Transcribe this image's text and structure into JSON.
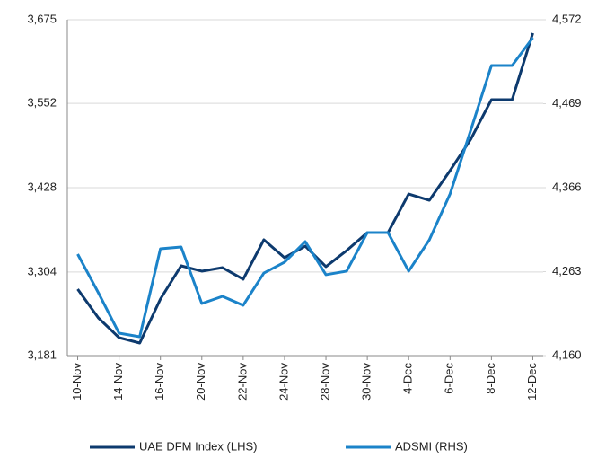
{
  "chart_data": {
    "type": "line",
    "categories": [
      "10-Nov",
      null,
      "14-Nov",
      null,
      "16-Nov",
      null,
      "20-Nov",
      null,
      "22-Nov",
      null,
      "24-Nov",
      null,
      "28-Nov",
      null,
      "30-Nov",
      null,
      "4-Dec",
      null,
      "6-Dec",
      null,
      "8-Dec",
      null,
      "12-Dec"
    ],
    "series": [
      {
        "name": "UAE DFM Index (LHS)",
        "color": "#0d3a6e",
        "axis": "y",
        "values": [
          3278.7,
          3236.5,
          3207.4,
          3199.5,
          3264.2,
          3313.1,
          3305.2,
          3310.4,
          3293.3,
          3351.4,
          3325.0,
          3342.1,
          3311.8,
          3335.5,
          3361.9,
          3361.9,
          3418.7,
          3409.5,
          3453.1,
          3499.3,
          3557.4,
          3557.4,
          3655.2
        ]
      },
      {
        "name": "ADSMI (RHS)",
        "color": "#1b83c9",
        "axis": "y2",
        "values": [
          4284.5,
          4237.1,
          4187.5,
          4183.1,
          4291.1,
          4293.3,
          4223.9,
          4232.7,
          4221.7,
          4261.3,
          4274.6,
          4299.9,
          4259.2,
          4263.6,
          4310.9,
          4310.9,
          4263.6,
          4302.1,
          4358.3,
          4436.5,
          4515.8,
          4515.8,
          4550.0
        ]
      }
    ],
    "ylim": [
      3181,
      3675
    ],
    "yticks": [
      {
        "value": 3181,
        "label": "3,181"
      },
      {
        "value": 3304,
        "label": "3,304"
      },
      {
        "value": 3428,
        "label": "3,428"
      },
      {
        "value": 3552,
        "label": "3,552"
      },
      {
        "value": 3675,
        "label": "3,675"
      }
    ],
    "y2lim": [
      4160,
      4572
    ],
    "y2ticks": [
      {
        "value": 4160,
        "label": "4,160"
      },
      {
        "value": 4263,
        "label": "4,263"
      },
      {
        "value": 4366,
        "label": "4,366"
      },
      {
        "value": 4469,
        "label": "4,469"
      },
      {
        "value": 4572,
        "label": "4,572"
      }
    ],
    "grid": true,
    "legend": "bottom"
  }
}
